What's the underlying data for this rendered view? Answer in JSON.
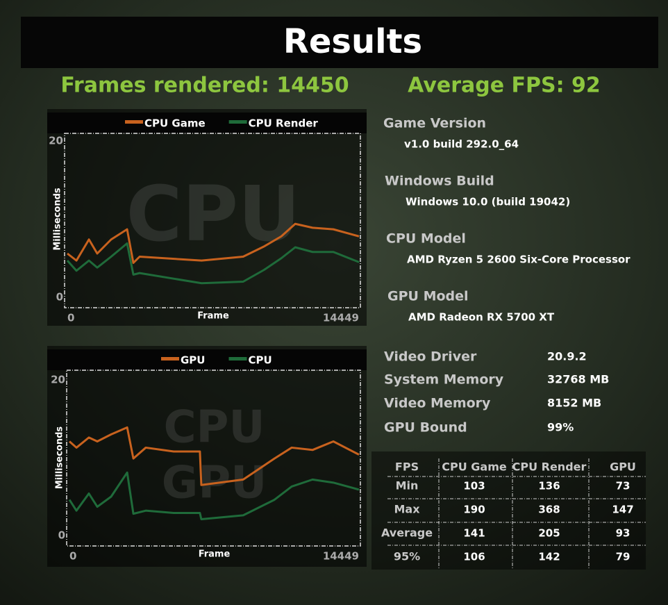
{
  "header": {
    "title": "Results",
    "frames": "Frames rendered: 14450",
    "average": "Average FPS: 92"
  },
  "chart_data": [
    {
      "type": "line",
      "watermark": [
        "CPU"
      ],
      "xlabel": "Frame",
      "ylabel": "Milliseconds",
      "xlim": [
        0,
        14449
      ],
      "xticks": [
        0,
        14449
      ],
      "ylim": [
        0,
        20
      ],
      "yticks": [
        0,
        20
      ],
      "x": [
        0,
        450,
        1070,
        1480,
        2170,
        2960,
        3270,
        3580,
        6650,
        8710,
        9740,
        10600,
        11290,
        12150,
        13180,
        14449
      ],
      "series": [
        {
          "name": "CPU Game",
          "color": "#c8621e",
          "values": [
            5.6,
            4.7,
            7.4,
            5.6,
            7.4,
            8.7,
            4.4,
            5.2,
            4.7,
            5.2,
            6.5,
            7.8,
            9.4,
            8.9,
            8.7,
            7.8
          ]
        },
        {
          "name": "CPU Render",
          "color": "#1f6b3a",
          "values": [
            4.7,
            3.4,
            4.7,
            3.8,
            5.2,
            6.9,
            2.9,
            3.1,
            1.8,
            2.0,
            3.5,
            5.0,
            6.4,
            5.8,
            5.8,
            4.5
          ]
        }
      ]
    },
    {
      "type": "line",
      "watermark": [
        "CPU",
        "GPU"
      ],
      "xlabel": "Frame",
      "ylabel": "Milliseconds",
      "xlim": [
        0,
        14449
      ],
      "xticks": [
        0,
        14449
      ],
      "ylim": [
        0,
        20
      ],
      "yticks": [
        0,
        20
      ],
      "x": [
        0,
        350,
        970,
        1390,
        2080,
        2880,
        3190,
        3810,
        5200,
        6510,
        6580,
        8670,
        10230,
        11090,
        12130,
        13170,
        14449
      ],
      "series": [
        {
          "name": "GPU",
          "color": "#c8621e",
          "values": [
            12.1,
            11.3,
            12.6,
            12.1,
            13.0,
            13.9,
            9.9,
            11.3,
            10.8,
            10.8,
            6.5,
            7.2,
            9.9,
            11.3,
            11.0,
            12.1,
            10.4
          ]
        },
        {
          "name": "CPU",
          "color": "#1f6b3a",
          "values": [
            4.6,
            3.2,
            5.4,
            3.7,
            5.0,
            8.1,
            2.8,
            3.2,
            2.9,
            2.9,
            2.1,
            2.6,
            4.6,
            6.3,
            7.2,
            6.8,
            5.9
          ]
        }
      ]
    }
  ],
  "info": [
    {
      "label": "Game Version",
      "value": "v1.0 build 292.0_64"
    },
    {
      "label": "Windows Build",
      "value": "Windows 10.0 (build 19042)"
    },
    {
      "label": "CPU Model",
      "value": "AMD Ryzen 5 2600 Six-Core Processor"
    },
    {
      "label": "GPU Model",
      "value": "AMD Radeon RX 5700 XT"
    }
  ],
  "stats": [
    {
      "label": "Video Driver",
      "value": "20.9.2"
    },
    {
      "label": "System Memory",
      "value": "32768 MB"
    },
    {
      "label": "Video Memory",
      "value": "8152 MB"
    },
    {
      "label": "GPU Bound",
      "value": "99%"
    }
  ],
  "table": {
    "header": [
      "FPS",
      "CPU Game",
      "CPU Render",
      "GPU"
    ],
    "rows": [
      [
        "Min",
        103,
        136,
        73
      ],
      [
        "Max",
        190,
        368,
        147
      ],
      [
        "Average",
        141,
        205,
        93
      ],
      [
        "95%",
        106,
        142,
        79
      ]
    ]
  }
}
